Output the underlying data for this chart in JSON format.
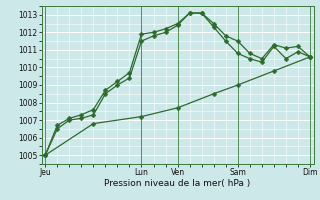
{
  "bg_color": "#cce8e8",
  "grid_color": "#ffffff",
  "line_color": "#2d6a2d",
  "title": "Pression niveau de la mer( hPa )",
  "ylim": [
    1004.5,
    1013.5
  ],
  "yticks": [
    1005,
    1006,
    1007,
    1008,
    1009,
    1010,
    1011,
    1012,
    1013
  ],
  "xtick_labels": [
    "Jeu",
    "",
    "Lun",
    "Ven",
    "",
    "Sam",
    "",
    "Dim"
  ],
  "xtick_positions": [
    0,
    4,
    8,
    11,
    14,
    16,
    19,
    22
  ],
  "x_day_lines": [
    0,
    8,
    11,
    16,
    22
  ],
  "line1_x": [
    0,
    1,
    2,
    3,
    4,
    5,
    6,
    7,
    8,
    9,
    10,
    11,
    12,
    13,
    14,
    15,
    16,
    17,
    18,
    19,
    20,
    21,
    22
  ],
  "line1": [
    1005.0,
    1006.5,
    1007.0,
    1007.1,
    1007.3,
    1008.5,
    1009.0,
    1009.4,
    1011.5,
    1011.8,
    1012.0,
    1012.4,
    1013.1,
    1013.1,
    1012.3,
    1011.5,
    1010.8,
    1010.5,
    1010.3,
    1011.2,
    1010.5,
    1010.9,
    1010.6
  ],
  "line2_x": [
    0,
    1,
    2,
    3,
    4,
    5,
    6,
    7,
    8,
    9,
    10,
    11,
    12,
    13,
    14,
    15,
    16,
    17,
    18,
    19,
    20,
    21,
    22
  ],
  "line2": [
    1005.0,
    1006.7,
    1007.1,
    1007.3,
    1007.6,
    1008.7,
    1009.2,
    1009.7,
    1011.9,
    1012.0,
    1012.2,
    1012.5,
    1013.1,
    1013.1,
    1012.5,
    1011.8,
    1011.5,
    1010.8,
    1010.5,
    1011.3,
    1011.1,
    1011.2,
    1010.6
  ],
  "line3_x": [
    0,
    4,
    8,
    11,
    14,
    16,
    19,
    22
  ],
  "line3": [
    1005.0,
    1006.8,
    1007.2,
    1007.7,
    1008.5,
    1009.0,
    1009.8,
    1010.6
  ],
  "figsize": [
    3.2,
    2.0
  ],
  "dpi": 100
}
